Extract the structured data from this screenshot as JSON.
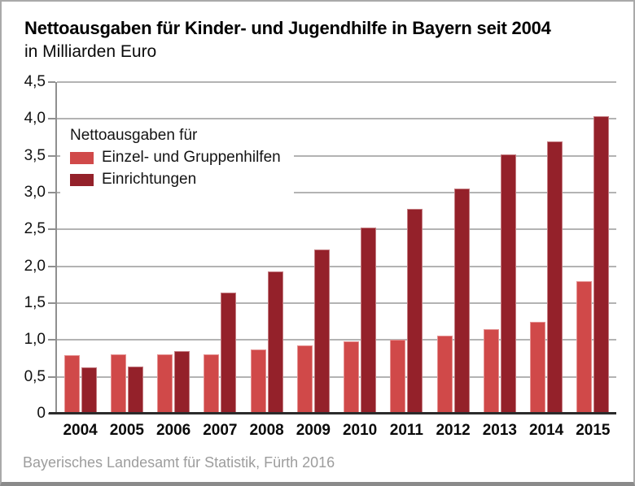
{
  "header": {
    "title": "Nettoausgaben für Kinder- und Jugendhilfe in Bayern seit 2004",
    "subtitle": "in Milliarden Euro"
  },
  "footer": {
    "source": "Bayerisches Landesamt für Statistik, Fürth 2016"
  },
  "legend": {
    "header": "Nettoausgaben für",
    "items": [
      {
        "label": "Einzel- und Gruppenhilfen",
        "color": "#d04949"
      },
      {
        "label": "Einrichtungen",
        "color": "#94212a"
      }
    ]
  },
  "chart_data": {
    "type": "bar",
    "title": "Nettoausgaben für Kinder- und Jugendhilfe in Bayern seit 2004",
    "subtitle": "in Milliarden Euro",
    "xlabel": "",
    "ylabel": "Milliarden Euro",
    "categories": [
      "2004",
      "2005",
      "2006",
      "2007",
      "2008",
      "2009",
      "2010",
      "2011",
      "2012",
      "2013",
      "2014",
      "2015"
    ],
    "series": [
      {
        "name": "Einzel- und Gruppenhilfen",
        "color": "#d04949",
        "values": [
          0.79,
          0.8,
          0.81,
          0.81,
          0.87,
          0.93,
          0.98,
          1.0,
          1.06,
          1.15,
          1.25,
          1.8
        ]
      },
      {
        "name": "Einrichtungen",
        "color": "#94212a",
        "values": [
          0.63,
          0.64,
          0.85,
          1.64,
          1.93,
          2.23,
          2.53,
          2.78,
          3.05,
          3.52,
          3.69,
          4.04
        ]
      }
    ],
    "ylim": [
      0,
      4.5
    ],
    "ytick_step": 0.5,
    "decimal_separator": ",",
    "grid": true,
    "gridline_color": "#b3b3b3",
    "legend_position": "upper-left"
  }
}
